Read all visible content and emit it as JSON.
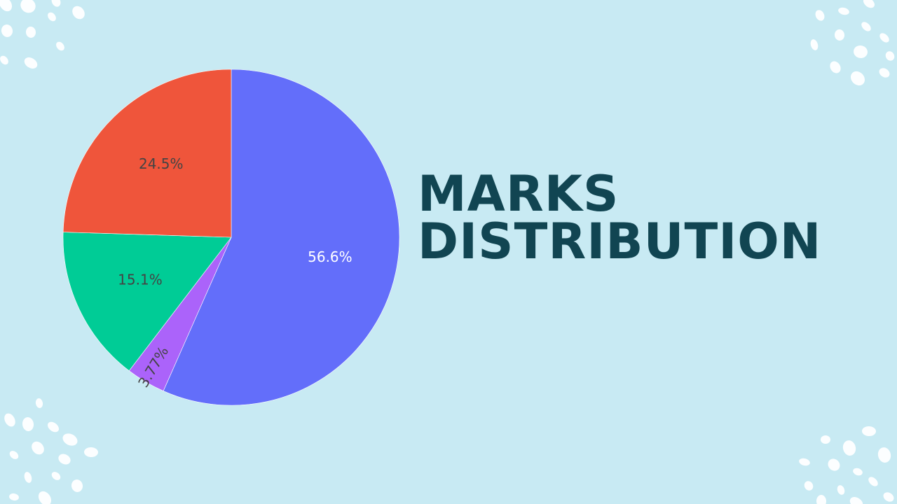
{
  "page": {
    "background": "#c8eaf3",
    "heading": {
      "line1": "MARKS",
      "line2": "DISTRIBUTION",
      "color": "#114552"
    }
  },
  "chart_data": {
    "type": "pie",
    "title": "",
    "slices": [
      {
        "label": "56.6%",
        "value": 56.6,
        "color": "#636efa",
        "label_color": "#ffffff"
      },
      {
        "label": "3.77%",
        "value": 3.77,
        "color": "#ab63fa",
        "label_color": "#444444"
      },
      {
        "label": "15.1%",
        "value": 15.1,
        "color": "#00cc96",
        "label_color": "#444444"
      },
      {
        "label": "24.5%",
        "value": 24.5,
        "color": "#ef553b",
        "label_color": "#444444"
      }
    ],
    "start_angle_deg": 0,
    "direction": "clockwise",
    "legend": "none"
  }
}
